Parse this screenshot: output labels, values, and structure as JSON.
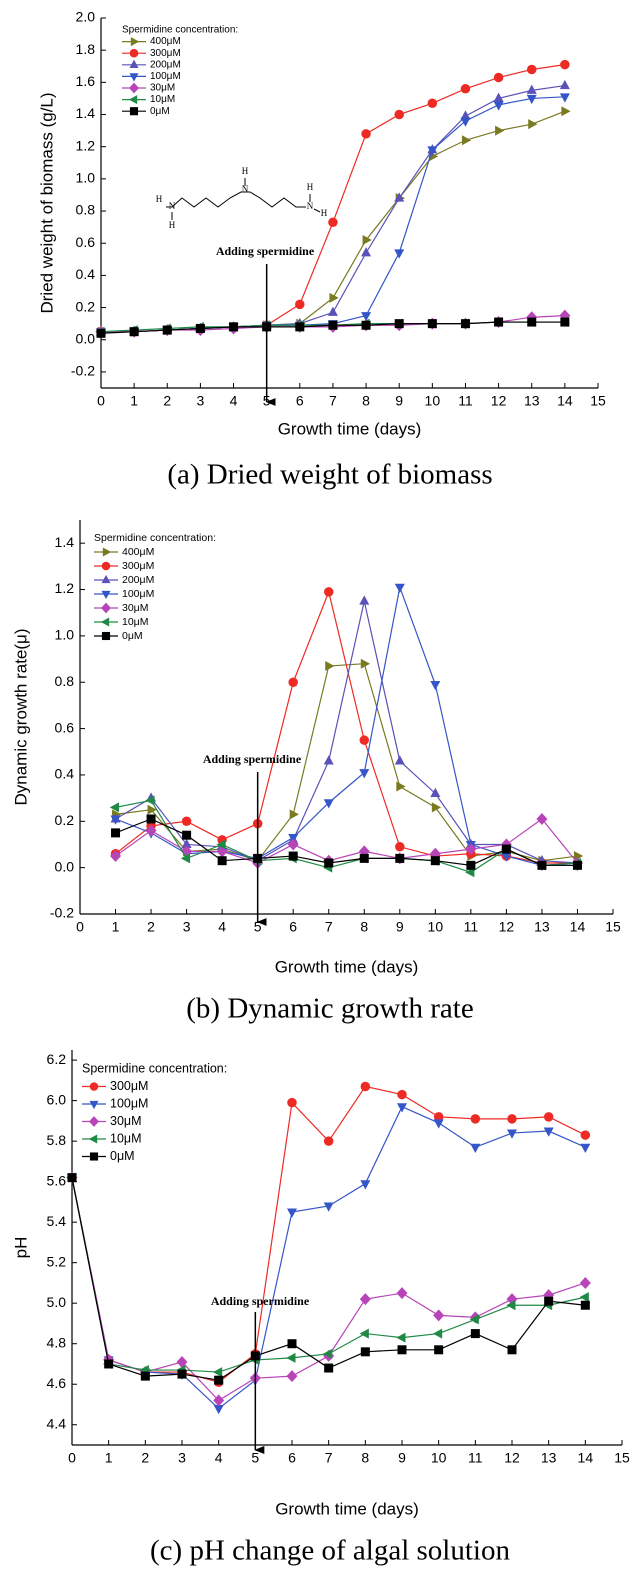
{
  "chart_data": [
    {
      "type": "line",
      "y_label": "Dried weight of biomass (g/L)",
      "x_label": "Growth time (days)",
      "caption": "(a) Dried weight of biomass",
      "legend_title": "Spermidine concentration:",
      "legend_position": "upper left",
      "grid": false,
      "annotation": {
        "text": "Adding spermidine",
        "x": 5
      },
      "structure_labels": [
        "H",
        "N",
        "H",
        "H",
        "N",
        "H",
        "N",
        "H"
      ],
      "xlim": [
        0,
        15
      ],
      "xticks": [
        0,
        1,
        2,
        3,
        4,
        5,
        6,
        7,
        8,
        9,
        10,
        11,
        12,
        13,
        14,
        15
      ],
      "ylim": [
        -0.3,
        2.0
      ],
      "yticks": [
        -0.2,
        {
          "value": 0,
          "label": "0.0"
        },
        0.2,
        0.4,
        0.6,
        0.8,
        {
          "value": 1,
          "label": "1.0"
        },
        1.2,
        1.4,
        1.6,
        1.8,
        {
          "value": 2,
          "label": "2.0"
        }
      ],
      "x": [
        0,
        1,
        2,
        3,
        4,
        5,
        6,
        7,
        8,
        9,
        10,
        11,
        12,
        13,
        14
      ],
      "series": [
        {
          "name": "400μM",
          "color": "#7a7a20",
          "marker": "triangle-right",
          "values": [
            0.05,
            0.05,
            0.06,
            0.07,
            0.08,
            0.09,
            0.1,
            0.26,
            0.62,
            0.88,
            1.14,
            1.24,
            1.3,
            1.34,
            1.42
          ]
        },
        {
          "name": "300μM",
          "color": "#ee2a24",
          "marker": "circle",
          "values": [
            0.05,
            0.05,
            0.06,
            0.07,
            0.08,
            0.09,
            0.22,
            0.73,
            1.28,
            1.4,
            1.47,
            1.56,
            1.63,
            1.68,
            1.71
          ]
        },
        {
          "name": "200μM",
          "color": "#5a52b8",
          "marker": "triangle-up",
          "values": [
            0.05,
            0.05,
            0.06,
            0.07,
            0.08,
            0.09,
            0.1,
            0.17,
            0.54,
            0.88,
            1.18,
            1.39,
            1.5,
            1.55,
            1.58
          ]
        },
        {
          "name": "100μM",
          "color": "#3456c8",
          "marker": "triangle-down",
          "values": [
            0.05,
            0.05,
            0.06,
            0.07,
            0.08,
            0.09,
            0.09,
            0.1,
            0.15,
            0.54,
            1.18,
            1.36,
            1.46,
            1.5,
            1.51
          ]
        },
        {
          "name": "30μM",
          "color": "#b845b8",
          "marker": "diamond",
          "values": [
            0.05,
            0.05,
            0.06,
            0.06,
            0.07,
            0.08,
            0.08,
            0.08,
            0.09,
            0.09,
            0.1,
            0.1,
            0.11,
            0.14,
            0.15
          ]
        },
        {
          "name": "10μM",
          "color": "#1f8a45",
          "marker": "triangle-left",
          "values": [
            0.05,
            0.06,
            0.07,
            0.08,
            0.08,
            0.09,
            0.09,
            0.09,
            0.1,
            0.1,
            0.1,
            0.1,
            0.11,
            0.11,
            0.11
          ]
        },
        {
          "name": "0μM",
          "color": "#000000",
          "marker": "square",
          "values": [
            0.04,
            0.05,
            0.06,
            0.07,
            0.08,
            0.08,
            0.08,
            0.09,
            0.09,
            0.1,
            0.1,
            0.1,
            0.11,
            0.11,
            0.11
          ]
        }
      ]
    },
    {
      "type": "line",
      "y_label": "Dynamic growth rate(μ)",
      "x_label": "Growth time (days)",
      "caption": "(b) Dynamic growth rate",
      "legend_title": "Spermidine concentration:",
      "legend_position": "upper left",
      "grid": false,
      "annotation": {
        "text": "Adding spermidine",
        "x": 5
      },
      "xlim": [
        0,
        15
      ],
      "xticks": [
        0,
        1,
        2,
        3,
        4,
        5,
        6,
        7,
        8,
        9,
        10,
        11,
        12,
        13,
        14,
        15
      ],
      "ylim": [
        -0.2,
        1.5
      ],
      "yticks": [
        -0.2,
        {
          "value": 0,
          "label": "0.0"
        },
        0.2,
        0.4,
        0.6,
        0.8,
        {
          "value": 1,
          "label": "1.0"
        },
        1.2,
        1.4
      ],
      "x": [
        1,
        2,
        3,
        4,
        5,
        6,
        7,
        8,
        9,
        10,
        11,
        12,
        13,
        14
      ],
      "series": [
        {
          "name": "400μM",
          "color": "#7a7a20",
          "marker": "triangle-right",
          "values": [
            0.23,
            0.25,
            0.07,
            0.08,
            0.03,
            0.23,
            0.87,
            0.88,
            0.35,
            0.26,
            0.05,
            0.07,
            0.03,
            0.05
          ]
        },
        {
          "name": "300μM",
          "color": "#ee2a24",
          "marker": "circle",
          "values": [
            0.06,
            0.18,
            0.2,
            0.12,
            0.19,
            0.8,
            1.19,
            0.55,
            0.09,
            0.05,
            0.06,
            0.05,
            0.02,
            0.02
          ]
        },
        {
          "name": "200μM",
          "color": "#5a52b8",
          "marker": "triangle-up",
          "values": [
            0.21,
            0.3,
            0.1,
            0.09,
            0.03,
            0.12,
            0.46,
            1.15,
            0.46,
            0.32,
            0.1,
            0.1,
            0.03,
            0.02
          ]
        },
        {
          "name": "100μM",
          "color": "#3456c8",
          "marker": "triangle-down",
          "values": [
            0.21,
            0.15,
            0.06,
            0.07,
            0.04,
            0.13,
            0.28,
            0.41,
            1.21,
            0.79,
            0.1,
            0.05,
            0.01,
            0.01
          ]
        },
        {
          "name": "30μM",
          "color": "#b845b8",
          "marker": "diamond",
          "values": [
            0.05,
            0.16,
            0.07,
            0.07,
            0.02,
            0.1,
            0.03,
            0.07,
            0.04,
            0.06,
            0.08,
            0.1,
            0.21,
            0.02
          ]
        },
        {
          "name": "10μM",
          "color": "#1f8a45",
          "marker": "triangle-left",
          "values": [
            0.26,
            0.29,
            0.04,
            0.1,
            0.03,
            0.04,
            0.0,
            0.04,
            0.04,
            0.03,
            -0.02,
            0.08,
            0.01,
            0.02
          ]
        },
        {
          "name": "0μM",
          "color": "#000000",
          "marker": "square",
          "values": [
            0.15,
            0.21,
            0.14,
            0.03,
            0.04,
            0.05,
            0.02,
            0.04,
            0.04,
            0.03,
            0.01,
            0.08,
            0.01,
            0.01
          ]
        }
      ]
    },
    {
      "type": "line",
      "y_label": "pH",
      "x_label": "Growth time (days)",
      "caption": "(c) pH change of algal solution",
      "legend_title": "Spermidine concentration:",
      "legend_position": "upper left",
      "grid": false,
      "annotation": {
        "text": "Adding spermidine",
        "x": 5
      },
      "xlim": [
        0,
        15
      ],
      "xticks": [
        0,
        1,
        2,
        3,
        4,
        5,
        6,
        7,
        8,
        9,
        10,
        11,
        12,
        13,
        14,
        15
      ],
      "ylim": [
        4.3,
        6.25
      ],
      "yticks": [
        4.4,
        4.6,
        4.8,
        {
          "value": 5,
          "label": "5.0"
        },
        5.2,
        5.4,
        5.6,
        5.8,
        {
          "value": 6,
          "label": "6.0"
        },
        6.2
      ],
      "x": [
        0,
        1,
        2,
        3,
        4,
        5,
        6,
        7,
        8,
        9,
        10,
        11,
        12,
        13,
        14
      ],
      "series": [
        {
          "name": "300μM",
          "color": "#ee2a24",
          "marker": "circle",
          "values": [
            5.62,
            4.72,
            4.66,
            4.66,
            4.61,
            4.75,
            5.99,
            5.8,
            6.07,
            6.03,
            5.92,
            5.91,
            5.91,
            5.92,
            5.83
          ]
        },
        {
          "name": "100μM",
          "color": "#3456c8",
          "marker": "triangle-down",
          "values": [
            5.62,
            4.72,
            4.66,
            4.65,
            4.48,
            4.62,
            5.45,
            5.48,
            5.59,
            5.97,
            5.89,
            5.77,
            5.84,
            5.85,
            5.77
          ]
        },
        {
          "name": "30μM",
          "color": "#b845b8",
          "marker": "diamond",
          "values": [
            5.62,
            4.72,
            4.66,
            4.71,
            4.52,
            4.63,
            4.64,
            4.74,
            5.02,
            5.05,
            4.94,
            4.93,
            5.02,
            5.04,
            5.1
          ]
        },
        {
          "name": "10μM",
          "color": "#1f8a45",
          "marker": "triangle-left",
          "values": [
            5.62,
            4.7,
            4.67,
            4.67,
            4.66,
            4.72,
            4.73,
            4.75,
            4.85,
            4.83,
            4.85,
            4.92,
            4.99,
            4.99,
            5.03
          ]
        },
        {
          "name": "0μM",
          "color": "#000000",
          "marker": "square",
          "values": [
            5.62,
            4.7,
            4.64,
            4.65,
            4.62,
            4.74,
            4.8,
            4.68,
            4.76,
            4.77,
            4.77,
            4.85,
            4.77,
            5.01,
            4.99
          ]
        }
      ]
    }
  ]
}
